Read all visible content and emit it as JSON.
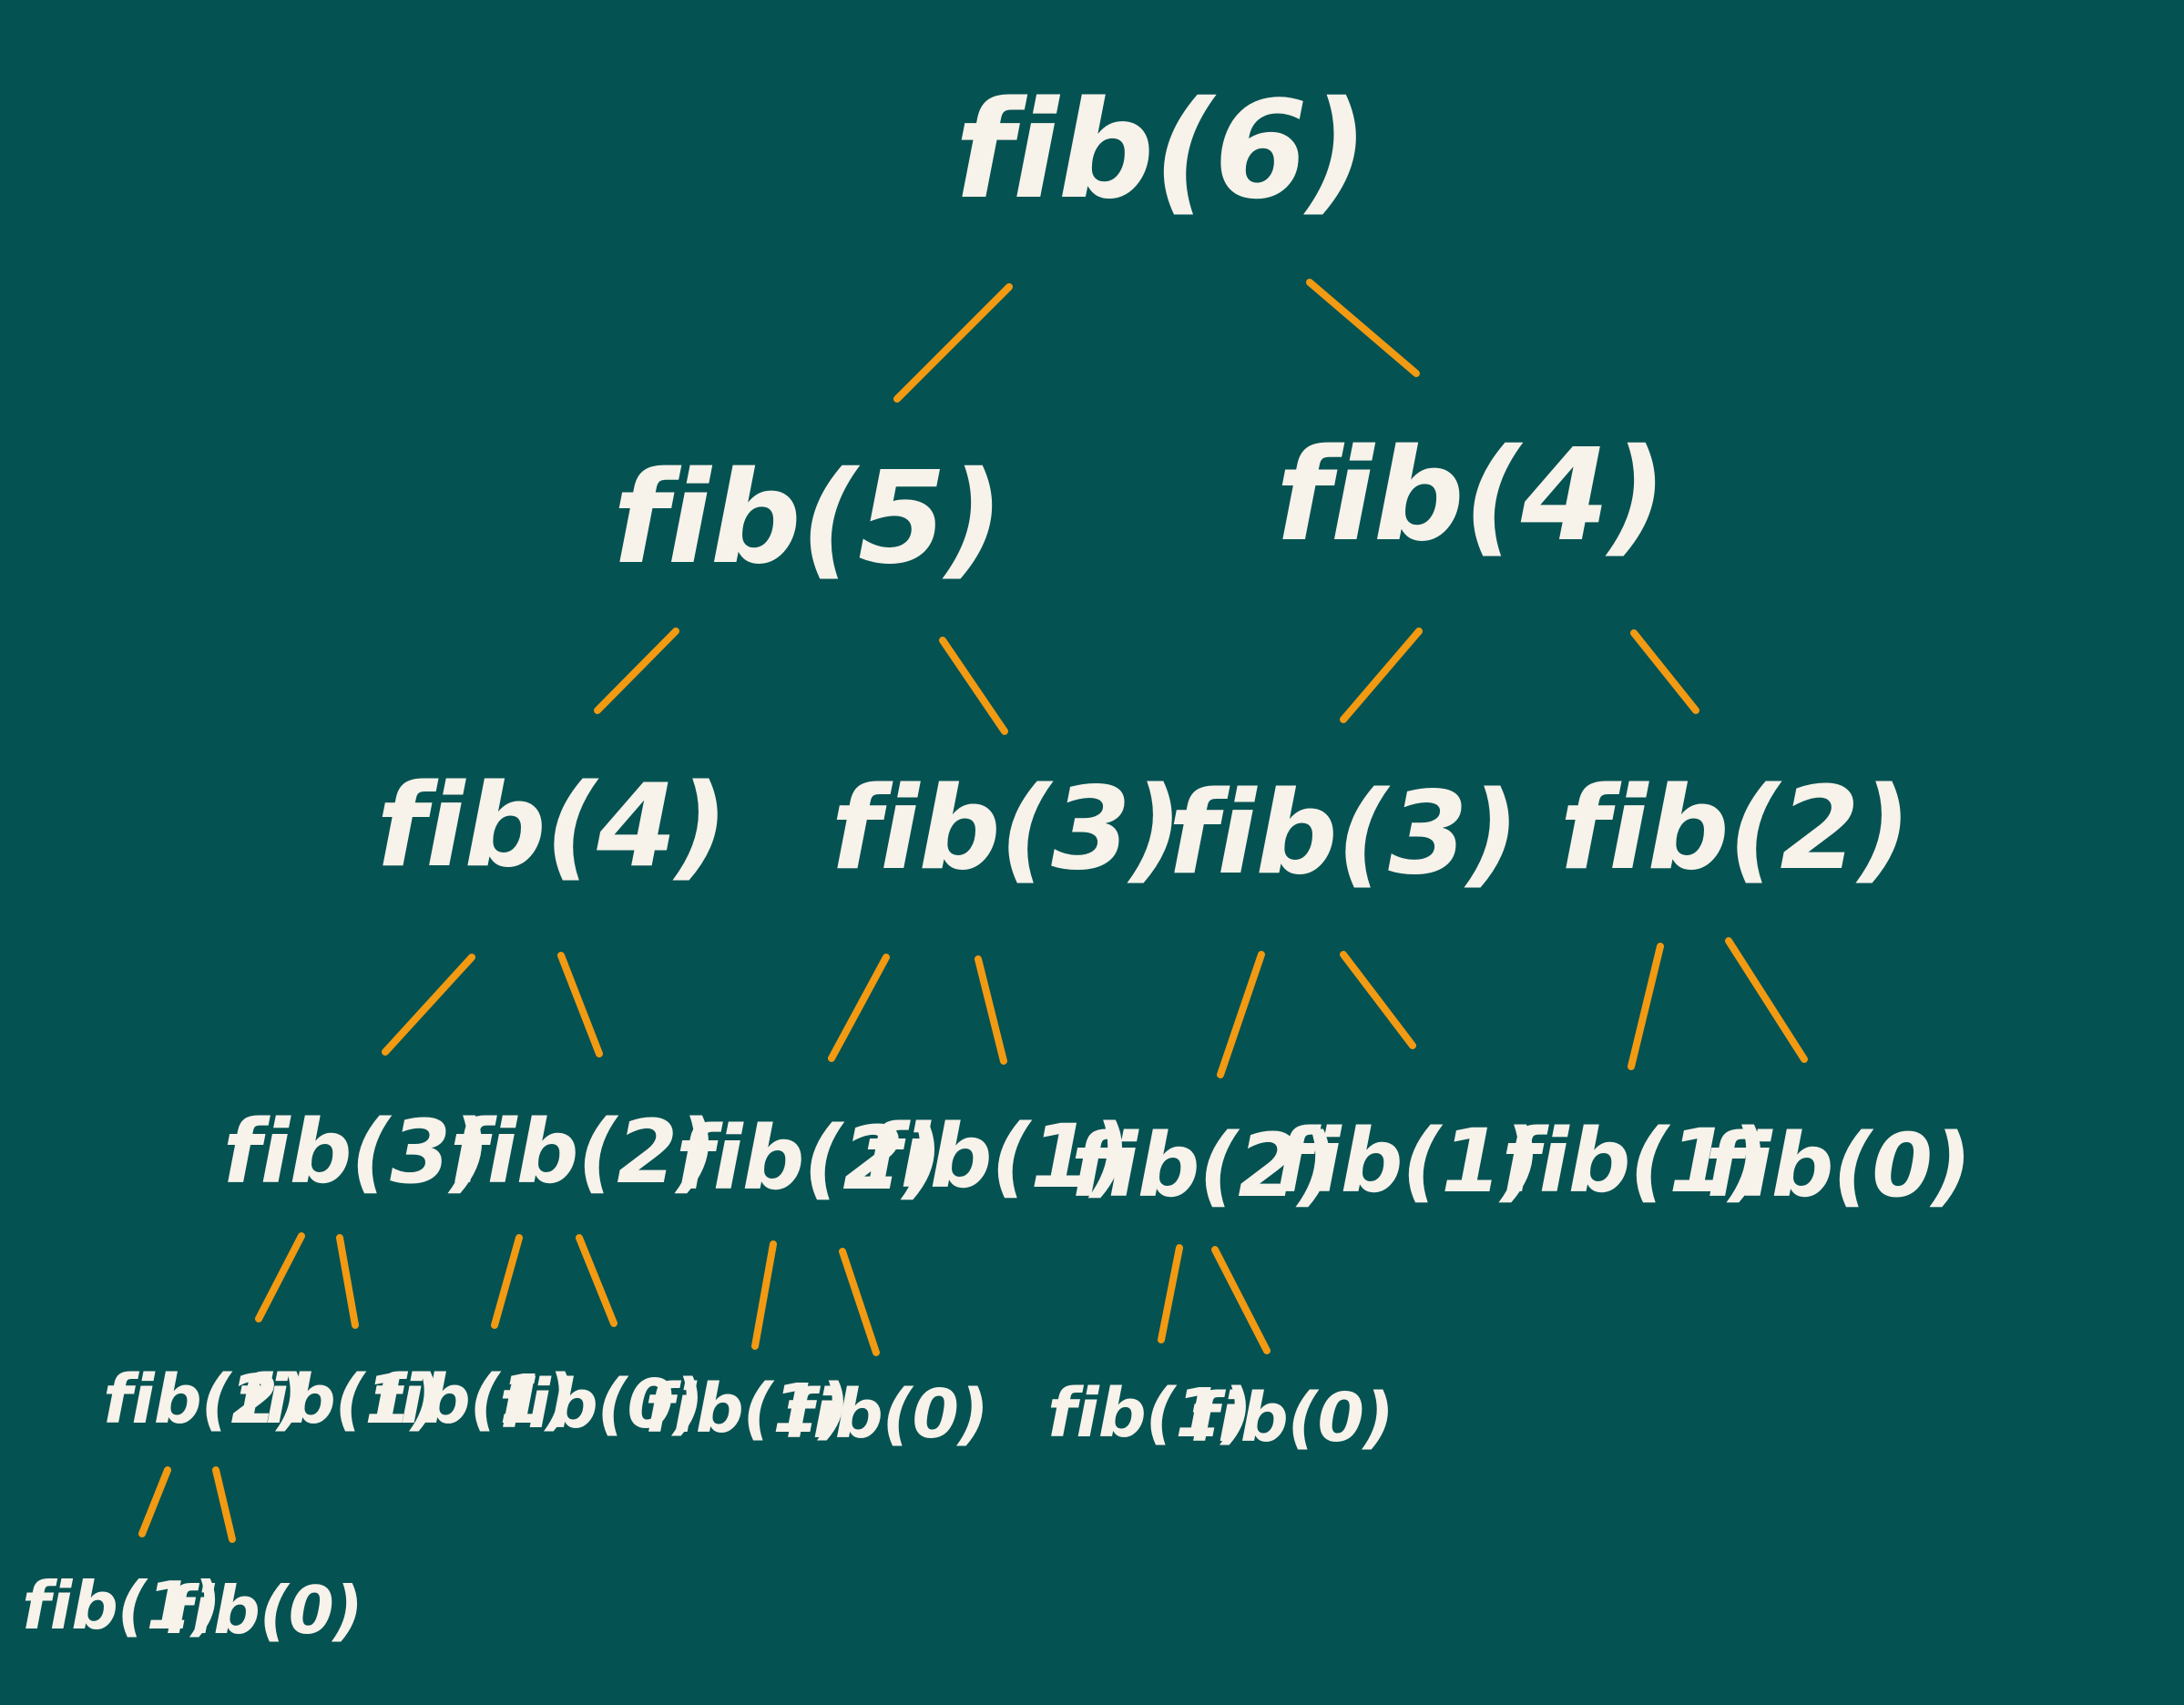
{
  "colors": {
    "background": "#055252",
    "text": "#F7F2EA",
    "edge": "#F29A12"
  },
  "nodes": {
    "n0": "fib(6)",
    "n1": "fib(5)",
    "n2": "fib(4)",
    "n3": "fib(4)",
    "n4": "fib(3)",
    "n5": "fib(3)",
    "n6": "fib(2)",
    "n7": "fib(3)",
    "n8": "fib(2)",
    "n9": "fib(2)",
    "n10": "fib(1)",
    "n11": "fib(2)",
    "n12": "fib(1)",
    "n13": "fib(1)",
    "n14": "fib(0)",
    "n15": "fib(2)",
    "n16": "fib(1)",
    "n17": "fib(1)",
    "n18": "fib(0)",
    "n19": "fib(1)",
    "n20": "fib(0)",
    "n21": "fib(1)",
    "n22": "fib(0)",
    "n23": "fib(1)",
    "n24": "fib(0)"
  }
}
